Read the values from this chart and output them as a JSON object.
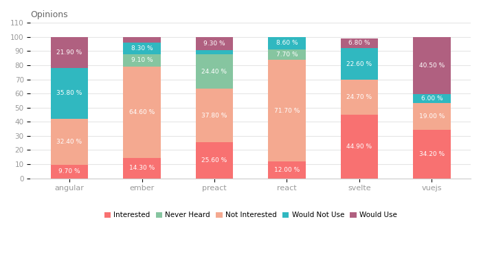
{
  "categories": [
    "angular",
    "ember",
    "preact",
    "react",
    "svelte",
    "vuejs"
  ],
  "series": {
    "Interested": [
      9.7,
      14.3,
      25.6,
      12.0,
      44.9,
      34.2
    ],
    "Not Interested": [
      32.4,
      64.6,
      37.8,
      71.7,
      24.7,
      19.0
    ],
    "Never Heard": [
      0.2,
      9.1,
      24.4,
      7.7,
      0.0,
      0.3
    ],
    "Would Not Use": [
      35.8,
      8.3,
      2.9,
      8.6,
      22.6,
      6.0
    ],
    "Would Use": [
      21.9,
      3.6,
      9.3,
      0.0,
      6.8,
      40.5
    ]
  },
  "colors": {
    "Interested": "#f87171",
    "Not Interested": "#f4a990",
    "Never Heard": "#86c5a0",
    "Would Not Use": "#30b8c0",
    "Would Use": "#b06080"
  },
  "series_order": [
    "Interested",
    "Not Interested",
    "Never Heard",
    "Would Not Use",
    "Would Use"
  ],
  "legend_order": [
    "Interested",
    "Never Heard",
    "Not Interested",
    "Would Not Use",
    "Would Use"
  ],
  "title": "Opinions",
  "ylim": [
    0,
    110
  ],
  "yticks": [
    0,
    10,
    20,
    30,
    40,
    50,
    60,
    70,
    80,
    90,
    100,
    110
  ],
  "bg_color": "#ffffff",
  "grid_color": "#e5e5e5",
  "text_color": "#ffffff",
  "label_fontsize": 6.5,
  "bar_width": 0.52,
  "axis_color": "#cccccc",
  "tick_color": "#999999"
}
